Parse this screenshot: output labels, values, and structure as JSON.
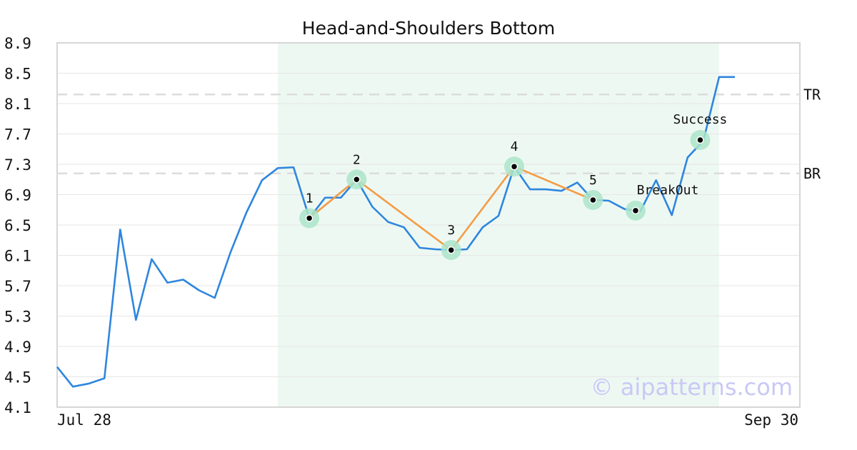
{
  "chart_data": {
    "type": "line",
    "title": "Head-and-Shoulders Bottom",
    "x_start_label": "Jul 28",
    "x_end_label": "Sep 30",
    "ylim": [
      4.1,
      8.9
    ],
    "yticks": [
      "4.1",
      "4.5",
      "4.9",
      "5.3",
      "5.7",
      "6.1",
      "6.5",
      "6.9",
      "7.3",
      "7.7",
      "8.1",
      "8.5",
      "8.9"
    ],
    "grid": true,
    "line_color": "#2e86de",
    "pattern_color": "#f39c45",
    "highlight_color": "#e8f5ef",
    "marker_color": "#abe5c9",
    "price": [
      4.63,
      4.37,
      4.41,
      4.48,
      6.44,
      5.25,
      6.05,
      5.74,
      5.78,
      5.64,
      5.54,
      6.14,
      6.66,
      7.09,
      7.25,
      7.26,
      6.59,
      6.86,
      6.86,
      7.1,
      6.74,
      6.54,
      6.47,
      6.2,
      6.18,
      6.17,
      6.18,
      6.47,
      6.62,
      7.27,
      6.97,
      6.97,
      6.95,
      7.06,
      6.83,
      6.82,
      6.71,
      6.68,
      7.09,
      6.63,
      7.39,
      7.61,
      8.45,
      8.45
    ],
    "highlight_range": [
      14,
      42
    ],
    "reference_lines": [
      {
        "label": "TR",
        "value": 8.22
      },
      {
        "label": "BR",
        "value": 7.18
      }
    ],
    "pattern_points": [
      {
        "label": "1",
        "index": 16,
        "value": 6.59
      },
      {
        "label": "2",
        "index": 19,
        "value": 7.1
      },
      {
        "label": "3",
        "index": 25,
        "value": 6.17
      },
      {
        "label": "4",
        "index": 29,
        "value": 7.27
      },
      {
        "label": "5",
        "index": 34,
        "value": 6.83
      },
      {
        "label": "BreakOut",
        "index": 36.7,
        "value": 6.69
      },
      {
        "label": "Success",
        "index": 40.8,
        "value": 7.62
      }
    ],
    "watermark": "© aipatterns.com"
  }
}
